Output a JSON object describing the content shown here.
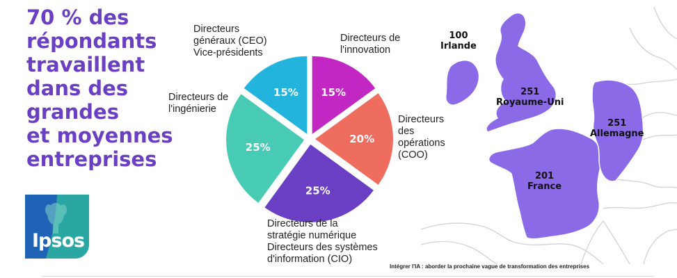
{
  "headline": {
    "lines": [
      "70 % des",
      "répondants",
      "travaillent",
      "dans des",
      "grandes",
      "et moyennes",
      "entreprises"
    ],
    "color": "#6a3fc4"
  },
  "logo": {
    "text": "Ipsos",
    "colors": [
      "#1e63b5",
      "#2aa7a3"
    ]
  },
  "chart_data": {
    "type": "pie",
    "slices": [
      {
        "label_lines": [
          "Directeurs de",
          "l'innovation"
        ],
        "value": 15,
        "value_label": "15%",
        "color": "#c227c4"
      },
      {
        "label_lines": [
          "Directeurs",
          "des",
          "opérations",
          "(COO)"
        ],
        "value": 20,
        "value_label": "20%",
        "color": "#ee6d5f"
      },
      {
        "label_lines": [
          "Directeurs de la",
          "stratégie numérique",
          "Directeurs des systèmes",
          "d'information (CIO)"
        ],
        "value": 25,
        "value_label": "25%",
        "color": "#6a3fc4"
      },
      {
        "label_lines": [
          "Directeurs de",
          "l'ingénierie"
        ],
        "value": 25,
        "value_label": "25%",
        "color": "#47cbb5"
      },
      {
        "label_lines": [
          "Directeurs",
          "généraux (CEO)",
          "Vice-présidents"
        ],
        "value": 15,
        "value_label": "15%",
        "color": "#22b4dc"
      }
    ]
  },
  "map": {
    "highlight_color": "#8b6ae8",
    "countries": [
      {
        "count": "100",
        "name": "Irlande"
      },
      {
        "count": "251",
        "name": "Royaume-Uni"
      },
      {
        "count": "251",
        "name": "Allemagne"
      },
      {
        "count": "201",
        "name": "France"
      }
    ]
  },
  "footer": {
    "text": "Intégrer l'IA : aborder la prochaine vague de transformation des entreprises"
  }
}
